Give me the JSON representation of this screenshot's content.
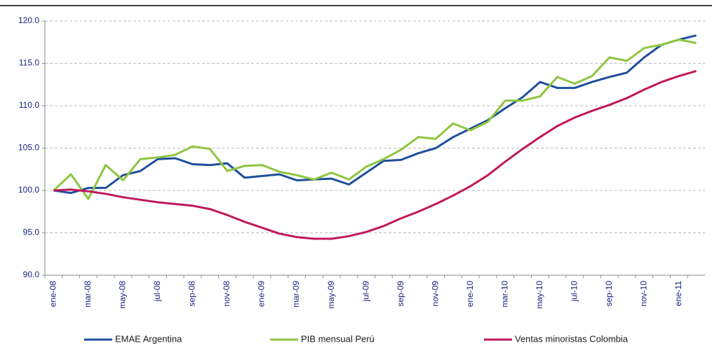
{
  "chart_data": {
    "type": "line",
    "categories": [
      "ene-08",
      null,
      "mar-08",
      null,
      "may-08",
      null,
      "jul-08",
      null,
      "sep-08",
      null,
      "nov-08",
      null,
      "ene-09",
      null,
      "mar-09",
      null,
      "may-09",
      null,
      "jul-09",
      null,
      "sep-09",
      null,
      "nov-09",
      null,
      "ene-10",
      null,
      "mar-10",
      null,
      "may-10",
      null,
      "jul-10",
      null,
      "sep-10",
      null,
      "nov-10",
      null,
      "ene-11",
      null
    ],
    "series": [
      {
        "name": "EMAE Argentina",
        "color": "#1f4e9c",
        "values": [
          100.0,
          99.7,
          100.3,
          100.3,
          101.8,
          102.3,
          103.7,
          103.8,
          103.1,
          103.0,
          103.2,
          101.5,
          101.7,
          101.9,
          101.2,
          101.3,
          101.4,
          100.7,
          102.1,
          103.5,
          103.6,
          104.4,
          105.0,
          106.3,
          107.3,
          108.3,
          109.7,
          111.0,
          112.8,
          112.1,
          112.1,
          112.8,
          113.4,
          113.9,
          115.7,
          117.2,
          117.8,
          118.3
        ]
      },
      {
        "name": "PIB mensual Perú",
        "color": "#8dc63f",
        "values": [
          100.0,
          101.9,
          99.0,
          103.0,
          101.2,
          103.7,
          103.9,
          104.2,
          105.2,
          104.9,
          102.3,
          102.9,
          103.0,
          102.2,
          101.8,
          101.3,
          102.1,
          101.3,
          102.8,
          103.7,
          104.8,
          106.3,
          106.1,
          107.9,
          107.1,
          108.1,
          110.6,
          110.6,
          111.1,
          113.4,
          112.6,
          113.5,
          115.7,
          115.3,
          116.8,
          117.2,
          117.8,
          117.4
        ]
      },
      {
        "name": "Ventas minoristas Colombia",
        "color": "#c0185a",
        "values": [
          100.0,
          100.1,
          99.9,
          99.6,
          99.2,
          98.9,
          98.6,
          98.4,
          98.2,
          97.8,
          97.1,
          96.3,
          95.6,
          94.9,
          94.5,
          94.3,
          94.3,
          94.6,
          95.1,
          95.8,
          96.7,
          97.5,
          98.4,
          99.4,
          100.5,
          101.8,
          103.4,
          104.9,
          106.3,
          107.6,
          108.6,
          109.4,
          110.1,
          110.9,
          111.9,
          112.8,
          113.5,
          114.1
        ]
      }
    ],
    "ylim": [
      90,
      120
    ],
    "yticks": [
      {
        "value": 90,
        "label": "90.0"
      },
      {
        "value": 95,
        "label": "95.0"
      },
      {
        "value": 100,
        "label": "100.0"
      },
      {
        "value": 105,
        "label": "105.0"
      },
      {
        "value": 110,
        "label": "110.0"
      },
      {
        "value": 115,
        "label": "115.0"
      },
      {
        "value": 120,
        "label": "120.0"
      }
    ],
    "grid": true
  }
}
